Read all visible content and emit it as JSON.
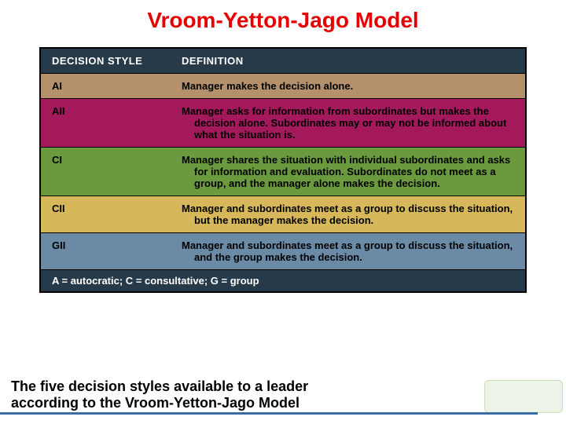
{
  "title": {
    "text": "Vroom-Yetton-Jago Model",
    "color": "#e60000",
    "fontsize": 28
  },
  "table": {
    "header_bg": "#273a4a",
    "header_fg": "#ffffff",
    "footer_bg": "#273a4a",
    "footer_fg": "#ffffff",
    "border_color": "#000000",
    "label_fontsize": 13,
    "body_fontsize": 13,
    "col_style_header": "DECISION STYLE",
    "col_def_header": "DEFINITION",
    "rows": [
      {
        "style": "AI",
        "def": "Manager makes the decision alone.",
        "bg": "#b4916c",
        "fg": "#000000"
      },
      {
        "style": "AII",
        "def": "Manager asks for information from subordinates but makes the decision alone. Subordinates may or may not be informed about what the situation is.",
        "bg": "#a3195b",
        "fg": "#000000"
      },
      {
        "style": "CI",
        "def": "Manager shares the situation with individual subordinates and asks for information and evaluation. Subordinates do not meet as a group, and the manager alone makes the decision.",
        "bg": "#6b9a3e",
        "fg": "#000000"
      },
      {
        "style": "CII",
        "def": "Manager and subordinates meet as a group to discuss the situation, but the manager makes the decision.",
        "bg": "#d6b85a",
        "fg": "#000000"
      },
      {
        "style": "GII",
        "def": "Manager and subordinates meet as a group to discuss the situation, and the group makes the decision.",
        "bg": "#6a8aa6",
        "fg": "#000000"
      }
    ],
    "footer": "A = autocratic; C = consultative; G = group"
  },
  "caption": {
    "line1": "The five decision styles available to a leader",
    "line2": " according to the Vroom-Yetton-Jago Model",
    "color": "#000000",
    "fontsize": 18
  },
  "decoration": {
    "bottom_line_color": "#3a6ea5",
    "corner_box_bg": "#eef3e7",
    "corner_box_border": "#cfe0b8"
  }
}
